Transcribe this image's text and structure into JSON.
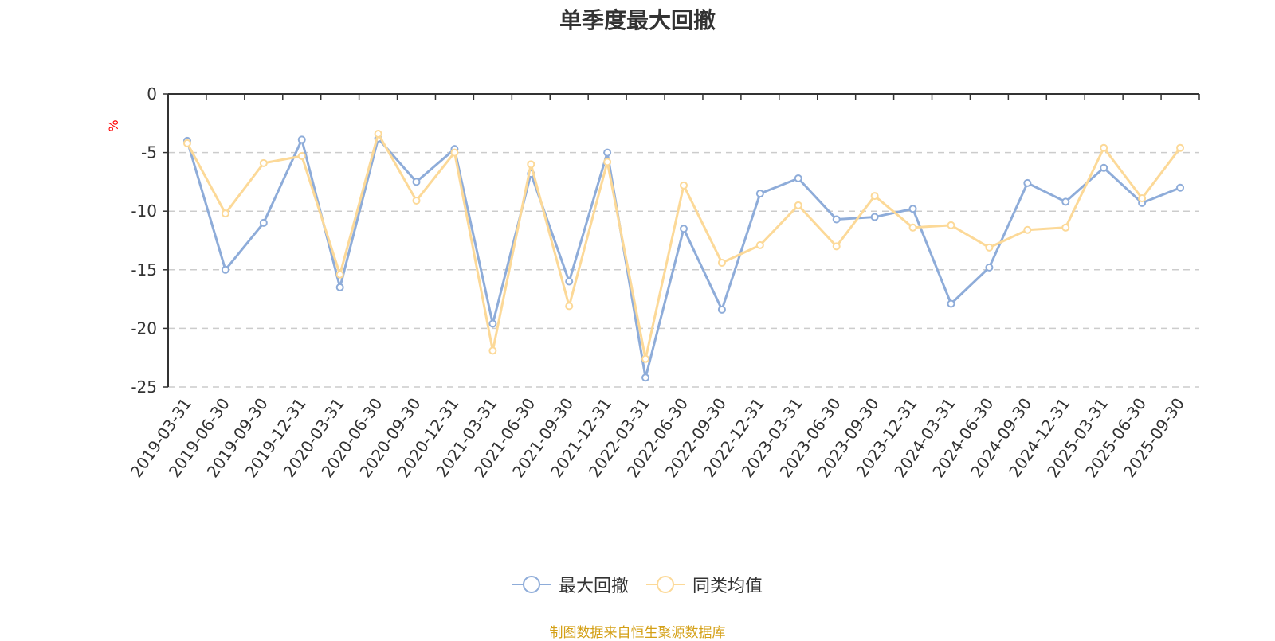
{
  "chart_data": {
    "type": "line",
    "title": "单季度最大回撤",
    "ylabel": "%",
    "ylim": [
      -25,
      0
    ],
    "yticks": [
      0,
      -5,
      -10,
      -15,
      -20,
      -25
    ],
    "grid": true,
    "legend_position": "bottom-center",
    "categories": [
      "2019-03-31",
      "2019-06-30",
      "2019-09-30",
      "2019-12-31",
      "2020-03-31",
      "2020-06-30",
      "2020-09-30",
      "2020-12-31",
      "2021-03-31",
      "2021-06-30",
      "2021-09-30",
      "2021-12-31",
      "2022-03-31",
      "2022-06-30",
      "2022-09-30",
      "2022-12-31",
      "2023-03-31",
      "2023-06-30",
      "2023-09-30",
      "2023-12-31",
      "2024-03-31",
      "2024-06-30",
      "2024-09-30",
      "2024-12-31",
      "2025-03-31",
      "2025-06-30",
      "2025-09-30"
    ],
    "series": [
      {
        "name": "最大回撤",
        "color": "#8eacd9",
        "values": [
          -4.0,
          -15.0,
          -11.0,
          -3.9,
          -16.5,
          -3.8,
          -7.5,
          -4.7,
          -19.6,
          -6.8,
          -16.0,
          -5.0,
          -24.2,
          -11.5,
          -18.4,
          -8.5,
          -7.2,
          -10.7,
          -10.5,
          -9.8,
          -17.9,
          -14.8,
          -7.6,
          -9.2,
          -6.3,
          -9.3,
          -8.0
        ]
      },
      {
        "name": "同类均值",
        "color": "#fcd998",
        "values": [
          -4.2,
          -10.2,
          -5.9,
          -5.3,
          -15.4,
          -3.4,
          -9.1,
          -5.0,
          -21.9,
          -6.0,
          -18.1,
          -5.8,
          -22.6,
          -7.8,
          -14.4,
          -12.9,
          -9.5,
          -13.0,
          -8.7,
          -11.4,
          -11.2,
          -13.1,
          -11.6,
          -11.4,
          -4.6,
          -8.9,
          -4.6
        ]
      }
    ]
  },
  "footer": "制图数据来自恒生聚源数据库"
}
